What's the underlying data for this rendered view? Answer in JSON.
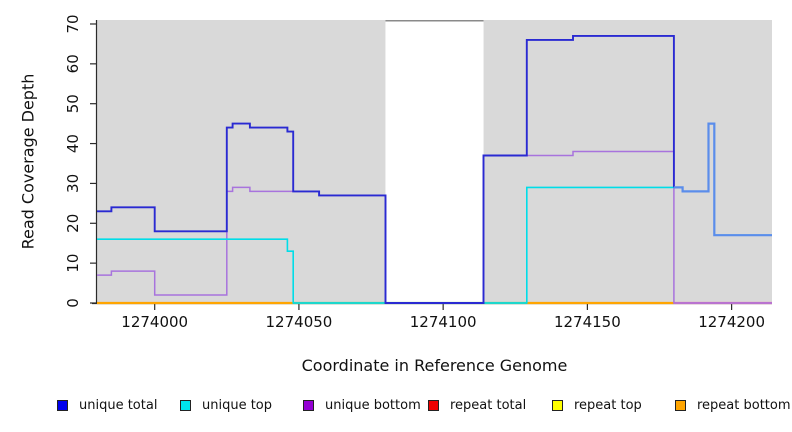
{
  "chart_data": {
    "type": "line",
    "subtype": "step-coverage-plot",
    "title": "",
    "xlabel": "Coordinate in Reference Genome",
    "ylabel": "Read Coverage Depth",
    "xlim": [
      1273980,
      1274214
    ],
    "ylim": [
      0,
      71
    ],
    "x_ticks": [
      "1274000",
      "1274050",
      "1274100",
      "1274150",
      "1274200"
    ],
    "x_tick_values": [
      1274000,
      1274050,
      1274100,
      1274150,
      1274200
    ],
    "y_ticks": [
      "0",
      "10",
      "20",
      "30",
      "40",
      "50",
      "60",
      "70"
    ],
    "y_tick_values": [
      0,
      10,
      20,
      30,
      40,
      50,
      60,
      70
    ],
    "grid": false,
    "legend_position": "bottom",
    "panel_background": "#d9d9d9",
    "axis_color": "#2a2a2a",
    "masked_region": {
      "from": 1274080,
      "to": 1274114,
      "fill": "#ffffff",
      "top_border": "#8a8a8a"
    },
    "series": [
      {
        "name": "unique total",
        "color": "#2a2ad2",
        "points": [
          [
            1273980,
            23
          ],
          [
            1273985,
            24
          ],
          [
            1274000,
            18
          ],
          [
            1274025,
            44
          ],
          [
            1274027,
            45
          ],
          [
            1274033,
            44
          ],
          [
            1274046,
            43
          ],
          [
            1274048,
            28
          ],
          [
            1274057,
            27
          ],
          [
            1274080,
            0
          ],
          [
            1274114,
            37
          ],
          [
            1274129,
            66
          ],
          [
            1274145,
            67
          ],
          [
            1274180,
            29
          ],
          [
            1274183,
            28
          ],
          [
            1274192,
            45
          ],
          [
            1274194,
            17
          ],
          [
            1274214,
            17
          ]
        ]
      },
      {
        "name": "unique top",
        "color": "#00dde8",
        "points": [
          [
            1273980,
            16
          ],
          [
            1274046,
            13
          ],
          [
            1274048,
            0
          ],
          [
            1274129,
            29
          ],
          [
            1274180,
            29
          ],
          [
            1274183,
            28
          ],
          [
            1274192,
            45
          ],
          [
            1274194,
            17
          ],
          [
            1274214,
            17
          ]
        ]
      },
      {
        "name": "unique bottom",
        "color": "#a873dd",
        "points": [
          [
            1273980,
            7
          ],
          [
            1273985,
            8
          ],
          [
            1274000,
            2
          ],
          [
            1274025,
            28
          ],
          [
            1274027,
            29
          ],
          [
            1274033,
            28
          ],
          [
            1274057,
            27
          ],
          [
            1274080,
            0
          ],
          [
            1274114,
            37
          ],
          [
            1274145,
            38
          ],
          [
            1274180,
            0
          ],
          [
            1274214,
            0
          ]
        ]
      },
      {
        "name": "repeat total",
        "color": "#ee0000",
        "points": [
          [
            1273980,
            0
          ],
          [
            1274214,
            0
          ]
        ]
      },
      {
        "name": "repeat top",
        "color": "#ffff00",
        "points": [
          [
            1273980,
            0
          ],
          [
            1274214,
            0
          ]
        ]
      },
      {
        "name": "repeat bottom",
        "color": "#ffa500",
        "points": [
          [
            1273980,
            0
          ],
          [
            1274214,
            0
          ]
        ]
      }
    ],
    "zero_line_segments": [
      {
        "from": 1273980,
        "to": 1274048,
        "color": "#ffa500"
      },
      {
        "from": 1274048,
        "to": 1274129,
        "color": "#74c476"
      },
      {
        "from": 1274129,
        "to": 1274180,
        "color": "#ffa500"
      },
      {
        "from": 1274180,
        "to": 1274214,
        "color": "#ec74a8"
      }
    ],
    "overlap_segment": {
      "note": "unique total coincides with unique top right of 1274180",
      "color": "#5b8deb",
      "from": 1274180
    }
  },
  "legend": {
    "items": [
      {
        "label": "unique total",
        "color": "#0000ee"
      },
      {
        "label": "unique top",
        "color": "#00e5ee"
      },
      {
        "label": "unique bottom",
        "color": "#9400d3"
      },
      {
        "label": "repeat total",
        "color": "#ee0000"
      },
      {
        "label": "repeat top",
        "color": "#ffff00"
      },
      {
        "label": "repeat bottom",
        "color": "#ffa500"
      }
    ]
  }
}
